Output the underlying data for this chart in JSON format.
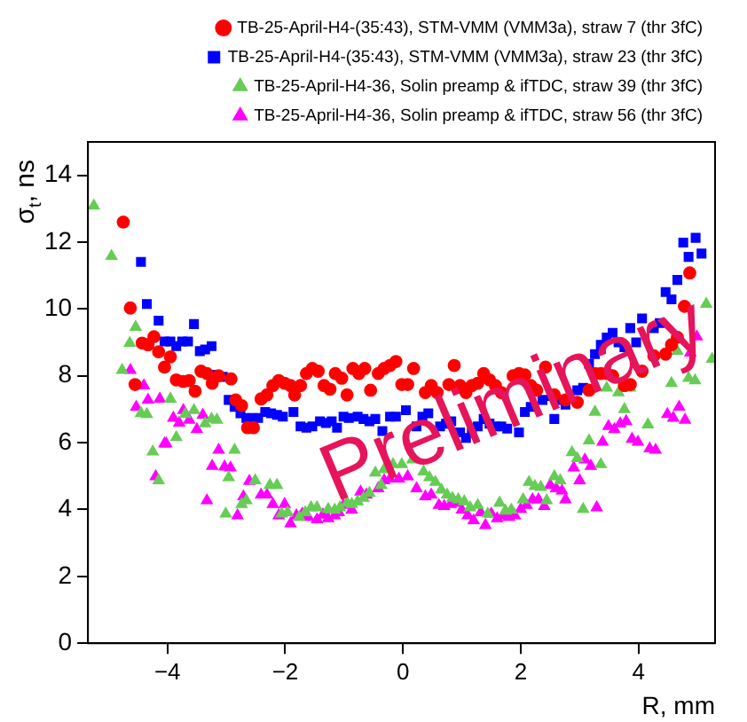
{
  "chart_data": {
    "type": "scatter",
    "xlabel": "R, mm",
    "ylabel": "σ$_{t}$, ns",
    "xlim": [
      -5.35,
      5.3
    ],
    "xticks": [
      -4,
      -2,
      0,
      2,
      4
    ],
    "ylim": [
      0,
      15
    ],
    "yticks": [
      0,
      2,
      4,
      6,
      8,
      10,
      12,
      14
    ],
    "grid": false,
    "legend": "top right",
    "annotations": [
      "Preliminary"
    ],
    "series": [
      {
        "name": "TB-25-April-H4-(35:43), STM-VMM (VMM3a), straw 7 (thr 3fC)",
        "color": "#ff0000",
        "marker": "circle",
        "x": [
          -4.75,
          -4.63,
          -4.55,
          -4.43,
          -4.33,
          -4.23,
          -4.15,
          -4.05,
          -3.95,
          -3.85,
          -3.73,
          -3.63,
          -3.53,
          -3.43,
          -3.33,
          -3.24,
          -3.13,
          -2.92,
          -2.84,
          -2.74,
          -2.64,
          -2.54,
          -2.41,
          -2.31,
          -2.21,
          -2.11,
          -2.01,
          -1.91,
          -1.84,
          -1.74,
          -1.64,
          -1.54,
          -1.44,
          -1.34,
          -1.24,
          -1.15,
          -1.04,
          -0.95,
          -0.85,
          -0.75,
          -0.65,
          -0.55,
          -0.42,
          -0.32,
          -0.22,
          -0.12,
          -0.02,
          0.08,
          0.18,
          0.38,
          0.48,
          0.58,
          0.78,
          0.87,
          0.97,
          1.07,
          1.17,
          1.27,
          1.37,
          1.47,
          1.57,
          1.67,
          1.87,
          1.97,
          2.07,
          2.17,
          2.27,
          2.42,
          2.57,
          2.76,
          2.96,
          3.16,
          3.26,
          3.36,
          3.46,
          3.56,
          3.76,
          3.86,
          4.06,
          4.26,
          4.46,
          4.56,
          4.66,
          4.78,
          4.87
        ],
        "values": [
          12.6,
          10.03,
          7.74,
          8.98,
          8.93,
          9.17,
          8.72,
          8.26,
          8.57,
          7.88,
          7.83,
          7.86,
          7.54,
          8.14,
          8.07,
          7.78,
          8.0,
          7.91,
          7.28,
          7.11,
          6.45,
          6.45,
          7.31,
          7.43,
          7.71,
          7.86,
          7.78,
          7.71,
          7.43,
          7.71,
          8.07,
          8.22,
          8.14,
          7.71,
          7.6,
          8.07,
          7.93,
          7.43,
          8.22,
          8.07,
          8.22,
          7.57,
          8.07,
          8.22,
          8.31,
          8.43,
          7.74,
          7.74,
          8.22,
          7.5,
          7.71,
          7.5,
          7.74,
          8.31,
          7.71,
          7.5,
          7.71,
          7.78,
          8.07,
          7.88,
          7.71,
          7.5,
          8.0,
          8.07,
          8.03,
          7.71,
          7.57,
          8.26,
          7.43,
          7.28,
          7.21,
          7.57,
          8.07,
          8.07,
          8.07,
          8.0,
          7.71,
          7.74,
          8.14,
          8.6,
          8.65,
          8.93,
          9.15,
          10.08,
          11.08
        ]
      },
      {
        "name": "TB-25-April-H4-(35:43), STM-VMM (VMM3a), straw 23 (thr 3fC)",
        "color": "#0000ff",
        "marker": "square",
        "x": [
          -4.45,
          -4.35,
          -4.15,
          -4.05,
          -3.95,
          -3.85,
          -3.75,
          -3.65,
          -3.55,
          -3.45,
          -3.36,
          -3.25,
          -3.16,
          -3.06,
          -2.96,
          -2.86,
          -2.76,
          -2.66,
          -2.56,
          -2.46,
          -2.34,
          -2.24,
          -2.14,
          -2.04,
          -1.86,
          -1.74,
          -1.64,
          -1.54,
          -1.41,
          -1.31,
          -1.21,
          -1.12,
          -1.01,
          -0.92,
          -0.77,
          -0.67,
          -0.57,
          -0.47,
          -0.35,
          -0.22,
          -0.12,
          0.05,
          0.23,
          0.33,
          0.43,
          0.63,
          0.73,
          0.82,
          0.97,
          1.07,
          1.17,
          1.27,
          1.37,
          1.47,
          1.57,
          1.67,
          1.77,
          1.97,
          2.07,
          2.17,
          2.37,
          2.52,
          2.57,
          2.67,
          2.76,
          2.96,
          3.06,
          3.16,
          3.26,
          3.36,
          3.46,
          3.56,
          3.66,
          3.76,
          3.86,
          3.96,
          4.06,
          4.26,
          4.36,
          4.46,
          4.56,
          4.66,
          4.76,
          4.85,
          4.97,
          5.07
        ],
        "values": [
          11.41,
          10.15,
          9.65,
          9.03,
          9.03,
          8.89,
          9.03,
          9.03,
          9.55,
          8.74,
          8.79,
          8.89,
          8.03,
          7.97,
          7.28,
          7.07,
          6.88,
          6.74,
          6.74,
          6.74,
          6.92,
          6.88,
          6.83,
          6.78,
          6.92,
          6.49,
          6.45,
          6.49,
          6.64,
          6.59,
          6.64,
          6.45,
          6.78,
          6.74,
          6.78,
          6.71,
          6.64,
          6.71,
          6.35,
          6.78,
          6.78,
          6.97,
          6.49,
          6.78,
          6.88,
          6.49,
          6.57,
          6.64,
          6.31,
          6.14,
          6.31,
          6.49,
          6.71,
          6.57,
          6.49,
          6.49,
          6.42,
          6.31,
          6.92,
          7.07,
          7.28,
          7.4,
          6.71,
          7.28,
          7.14,
          7.57,
          7.64,
          8.36,
          8.65,
          8.93,
          9.15,
          9.29,
          9.0,
          8.86,
          9.43,
          9.0,
          9.72,
          9.43,
          9.58,
          10.51,
          10.29,
          10.87,
          11.99,
          11.56,
          12.13,
          11.66
        ]
      },
      {
        "name": "TB-25-April-H4-36, Solin preamp & ifTDC, straw 39 (thr 3fC)",
        "color": "#66cc55",
        "marker": "triangle",
        "x": [
          -5.25,
          -4.95,
          -4.77,
          -4.64,
          -4.54,
          -4.45,
          -4.35,
          -4.25,
          -4.15,
          -3.95,
          -3.85,
          -3.7,
          -3.55,
          -3.36,
          -3.25,
          -3.16,
          -3.01,
          -2.96,
          -2.86,
          -2.74,
          -2.66,
          -2.51,
          -2.26,
          -2.14,
          -2.06,
          -1.96,
          -1.76,
          -1.66,
          -1.56,
          -1.46,
          -1.27,
          -1.16,
          -1.07,
          -0.95,
          -0.87,
          -0.77,
          -0.67,
          -0.57,
          -0.47,
          -0.37,
          -0.32,
          -0.17,
          -0.02,
          0.16,
          0.35,
          0.45,
          0.55,
          0.65,
          0.75,
          0.84,
          0.94,
          1.04,
          1.14,
          1.27,
          1.44,
          1.64,
          1.74,
          1.84,
          2.04,
          2.14,
          2.24,
          2.34,
          2.44,
          2.57,
          2.67,
          2.87,
          2.96,
          3.06,
          3.16,
          3.26,
          3.36,
          3.46,
          3.66,
          3.76,
          3.86,
          4.16,
          4.56,
          4.66,
          4.85,
          4.96,
          5.15,
          5.25
        ],
        "values": [
          13.09,
          11.58,
          8.17,
          8.98,
          9.46,
          6.88,
          6.85,
          5.73,
          4.87,
          7.31,
          6.16,
          6.85,
          6.97,
          6.57,
          6.71,
          6.68,
          3.87,
          4.96,
          5.78,
          4.16,
          4.27,
          4.87,
          4.73,
          4.73,
          3.87,
          3.91,
          3.77,
          3.91,
          4.06,
          4.06,
          4.01,
          3.99,
          4.06,
          4.2,
          4.16,
          4.24,
          4.34,
          4.49,
          5.1,
          4.73,
          5.2,
          5.35,
          5.35,
          5.49,
          5.13,
          4.96,
          4.82,
          4.59,
          4.44,
          4.34,
          4.3,
          4.24,
          4.06,
          4.13,
          3.87,
          4.2,
          3.96,
          3.99,
          4.3,
          4.82,
          4.7,
          4.67,
          4.27,
          4.99,
          4.87,
          5.71,
          5.53,
          4.01,
          6.06,
          6.92,
          5.35,
          7.64,
          7.5,
          7.0,
          7.64,
          6.54,
          7.78,
          8.74,
          7.93,
          7.86,
          10.15,
          8.5
        ]
      },
      {
        "name": "TB-25-April-H4-36, Solin preamp & ifTDC, straw 56 (thr 3fC)",
        "color": "#ff00ff",
        "marker": "triangle",
        "x": [
          -4.63,
          -4.53,
          -4.4,
          -4.33,
          -4.2,
          -4.13,
          -4.05,
          -4.02,
          -3.9,
          -3.8,
          -3.73,
          -3.63,
          -3.5,
          -3.4,
          -3.33,
          -3.24,
          -3.13,
          -3.03,
          -2.93,
          -2.81,
          -2.71,
          -2.61,
          -2.41,
          -2.31,
          -2.21,
          -2.11,
          -2.01,
          -1.91,
          -1.81,
          -1.71,
          -1.61,
          -1.46,
          -1.36,
          -1.27,
          -1.16,
          -1.09,
          -1.01,
          -0.87,
          -0.72,
          -0.62,
          -0.42,
          -0.32,
          -0.22,
          -0.07,
          0.08,
          0.23,
          0.38,
          0.48,
          0.61,
          0.7,
          0.81,
          0.9,
          1.0,
          1.1,
          1.2,
          1.32,
          1.4,
          1.5,
          1.6,
          1.7,
          1.8,
          1.9,
          2.0,
          2.1,
          2.2,
          2.3,
          2.4,
          2.5,
          2.6,
          2.7,
          2.76,
          2.9,
          3.0,
          3.09,
          3.19,
          3.29,
          3.39,
          3.49,
          3.59,
          3.69,
          3.79,
          3.89,
          3.99,
          4.19,
          4.29,
          4.49,
          4.59,
          4.69,
          4.79,
          4.88,
          4.99
        ],
        "values": [
          8.17,
          7.07,
          7.71,
          7.28,
          4.99,
          7.31,
          5.97,
          5.97,
          6.74,
          6.59,
          6.97,
          6.68,
          6.4,
          6.83,
          4.27,
          5.3,
          5.78,
          5.28,
          5.25,
          3.82,
          4.39,
          4.85,
          4.44,
          4.44,
          4.16,
          3.82,
          4.16,
          3.58,
          3.82,
          3.87,
          3.77,
          3.7,
          3.84,
          3.73,
          3.82,
          3.91,
          4.13,
          3.99,
          4.53,
          4.44,
          4.63,
          4.87,
          4.92,
          4.92,
          4.99,
          4.63,
          4.39,
          4.44,
          4.13,
          4.1,
          4.16,
          4.2,
          3.99,
          3.82,
          3.67,
          3.91,
          3.53,
          3.87,
          3.73,
          3.82,
          3.77,
          3.82,
          4.01,
          4.13,
          4.3,
          4.3,
          4.1,
          4.73,
          4.63,
          4.56,
          4.3,
          5.25,
          4.87,
          5.49,
          5.3,
          4.06,
          6.02,
          6.49,
          6.4,
          6.57,
          6.64,
          6.11,
          6.02,
          5.82,
          5.78,
          6.85,
          6.74,
          7.07,
          6.68,
          8.69,
          9.17
        ]
      }
    ]
  }
}
